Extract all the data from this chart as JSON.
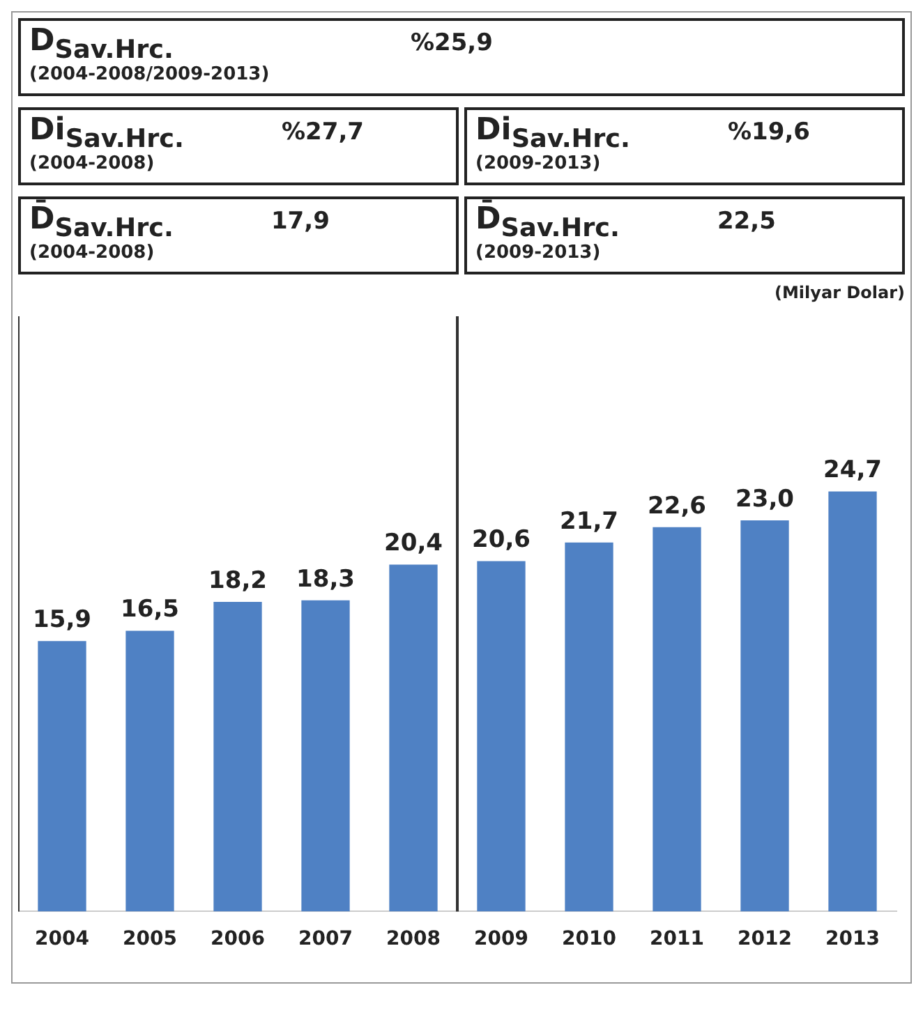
{
  "chart_data": {
    "type": "bar",
    "categories": [
      "2004",
      "2005",
      "2006",
      "2007",
      "2008",
      "2009",
      "2010",
      "2011",
      "2012",
      "2013"
    ],
    "values": [
      15.9,
      16.5,
      18.2,
      18.3,
      20.4,
      20.6,
      21.7,
      22.6,
      23.0,
      24.7
    ],
    "value_labels": [
      "15,9",
      "16,5",
      "18,2",
      "18,3",
      "20,4",
      "20,6",
      "21,7",
      "22,6",
      "23,0",
      "24,7"
    ],
    "color": "#4f81c4",
    "grid": false,
    "legend": false,
    "tick_labels": "x",
    "annotations": [
      "D$_{Sav.Hrc.}$",
      "%25,9",
      "(2004-2008/2009-2013)",
      "Di$_{Sav.Hrc.}$",
      "%27,7",
      "(2004-2008)",
      "Di$_{Sav.Hrc.}$",
      "%19,6",
      "(2009-2013)",
      "D̄$_{Sav.Hrc.}$",
      "17,9",
      "(2004-2008)",
      "D̄$_{Sav.Hrc.}$",
      "22,5",
      "(2009-2013)",
      "(Milyar Dolar)"
    ]
  }
}
